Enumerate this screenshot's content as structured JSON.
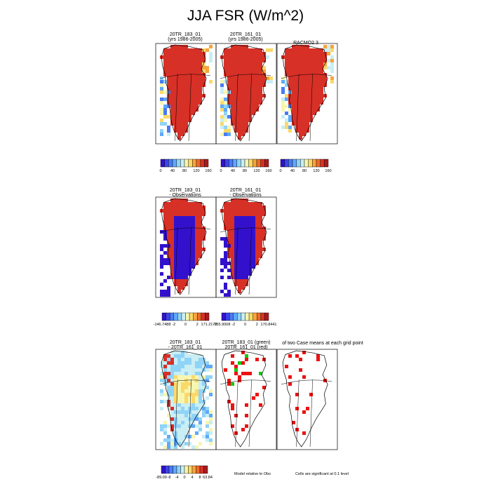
{
  "title": "JJA FSR (W/m^2)",
  "colors": {
    "ice": "#d73027",
    "land_blue": "#2c7fb8",
    "sig_red": "#ee1111",
    "sig_green": "#11cc11",
    "outline": "#000000"
  },
  "colorbars": [
    {
      "colors": [
        "#3311cc",
        "#3b45e8",
        "#4a7bf5",
        "#5fa8fa",
        "#8fd3f7",
        "#c9eef4",
        "#f6f6b0",
        "#fad96a",
        "#f7a43c",
        "#ee6b2a",
        "#d73027",
        "#a81c1f"
      ],
      "labels": [
        "0",
        "40",
        "80",
        "120",
        "160"
      ]
    },
    {
      "colors": [
        "#3311cc",
        "#3b45e8",
        "#4a7bf5",
        "#5fa8fa",
        "#8fd3f7",
        "#c9eef4",
        "#f6f6b0",
        "#fad96a",
        "#f7a43c",
        "#ee6b2a",
        "#d73027",
        "#a81c1f"
      ],
      "labels": [
        "0",
        "40",
        "80",
        "120",
        "160"
      ]
    },
    {
      "colors": [
        "#3311cc",
        "#3b45e8",
        "#4a7bf5",
        "#5fa8fa",
        "#8fd3f7",
        "#c9eef4",
        "#f6f6b0",
        "#fad96a",
        "#f7a43c",
        "#ee6b2a",
        "#d73027",
        "#a81c1f"
      ],
      "labels": [
        "0",
        "40",
        "80",
        "120",
        "160"
      ]
    },
    {
      "colors": [
        "#3311cc",
        "#3b45e8",
        "#4a7bf5",
        "#5fa8fa",
        "#8fd3f7",
        "#c9eef4",
        "#f6f6b0",
        "#fad96a",
        "#f7a43c",
        "#ee6b2a",
        "#d73027",
        "#a81c1f"
      ],
      "labels": [
        "-146.7488",
        "-2",
        "0",
        "2",
        "171.2178"
      ]
    },
    {
      "colors": [
        "#3311cc",
        "#3b45e8",
        "#4a7bf5",
        "#5fa8fa",
        "#8fd3f7",
        "#c9eef4",
        "#f6f6b0",
        "#fad96a",
        "#f7a43c",
        "#ee6b2a",
        "#d73027",
        "#a81c1f"
      ],
      "labels": [
        "-155.9008",
        "-2",
        "0",
        "2",
        "170.8441"
      ]
    },
    {
      "colors": [
        "#3311cc",
        "#3b45e8",
        "#4a7bf5",
        "#5fa8fa",
        "#8fd3f7",
        "#c9eef4",
        "#f6f6b0",
        "#fad96a",
        "#f7a43c",
        "#ee6b2a",
        "#d73027",
        "#a81c1f"
      ],
      "labels": [
        "-89.09",
        "-8",
        "-4",
        "0",
        "4",
        "8",
        "63.84"
      ]
    }
  ],
  "notes": {
    "model_relative": "Model relative to Obs",
    "significance": "Cells are significant at 0.1 level"
  },
  "chart_data": [
    {
      "type": "heatmap",
      "title_lines": [
        "20TR_183_01",
        "(yrs 1986-2005)"
      ],
      "field": "JJA FSR (W/m^2)",
      "scale_labels": [
        "0",
        "40",
        "80",
        "120",
        "160"
      ],
      "dominant": "ice"
    },
    {
      "type": "heatmap",
      "title_lines": [
        "20TR_161_01",
        "(yrs 1986-2005)"
      ],
      "field": "JJA FSR (W/m^2)",
      "scale_labels": [
        "0",
        "40",
        "80",
        "120",
        "160"
      ],
      "dominant": "ice"
    },
    {
      "type": "heatmap",
      "title_lines": [
        "RACMO2.3",
        ""
      ],
      "field": "JJA FSR (W/m^2)",
      "scale_labels": [
        "0",
        "40",
        "80",
        "120",
        "160"
      ],
      "dominant": "ice"
    },
    {
      "type": "heatmap",
      "title_lines": [
        "20TR_183_01",
        "- Observations"
      ],
      "field": "difference",
      "range": [
        -146.7488,
        171.2178
      ],
      "dominant": "diff"
    },
    {
      "type": "heatmap",
      "title_lines": [
        "20TR_161_01",
        "- Observations"
      ],
      "field": "difference",
      "range": [
        -155.9008,
        170.8441
      ],
      "dominant": "diff"
    },
    {
      "type": "heatmap",
      "title_lines": [
        "20TR_183_01",
        "- 20TR_161_01"
      ],
      "field": "difference",
      "range": [
        -89.09,
        63.84
      ],
      "dominant": "modeldiff"
    },
    {
      "type": "heatmap",
      "title_lines": [
        "20TR_183_01 (green)",
        "20TR_161_01 (red)"
      ],
      "field": "significance",
      "dominant": "sig2"
    },
    {
      "type": "heatmap",
      "title_lines": [
        "of two Case means at each grid point",
        ""
      ],
      "field": "significance",
      "dominant": "sig1"
    }
  ]
}
